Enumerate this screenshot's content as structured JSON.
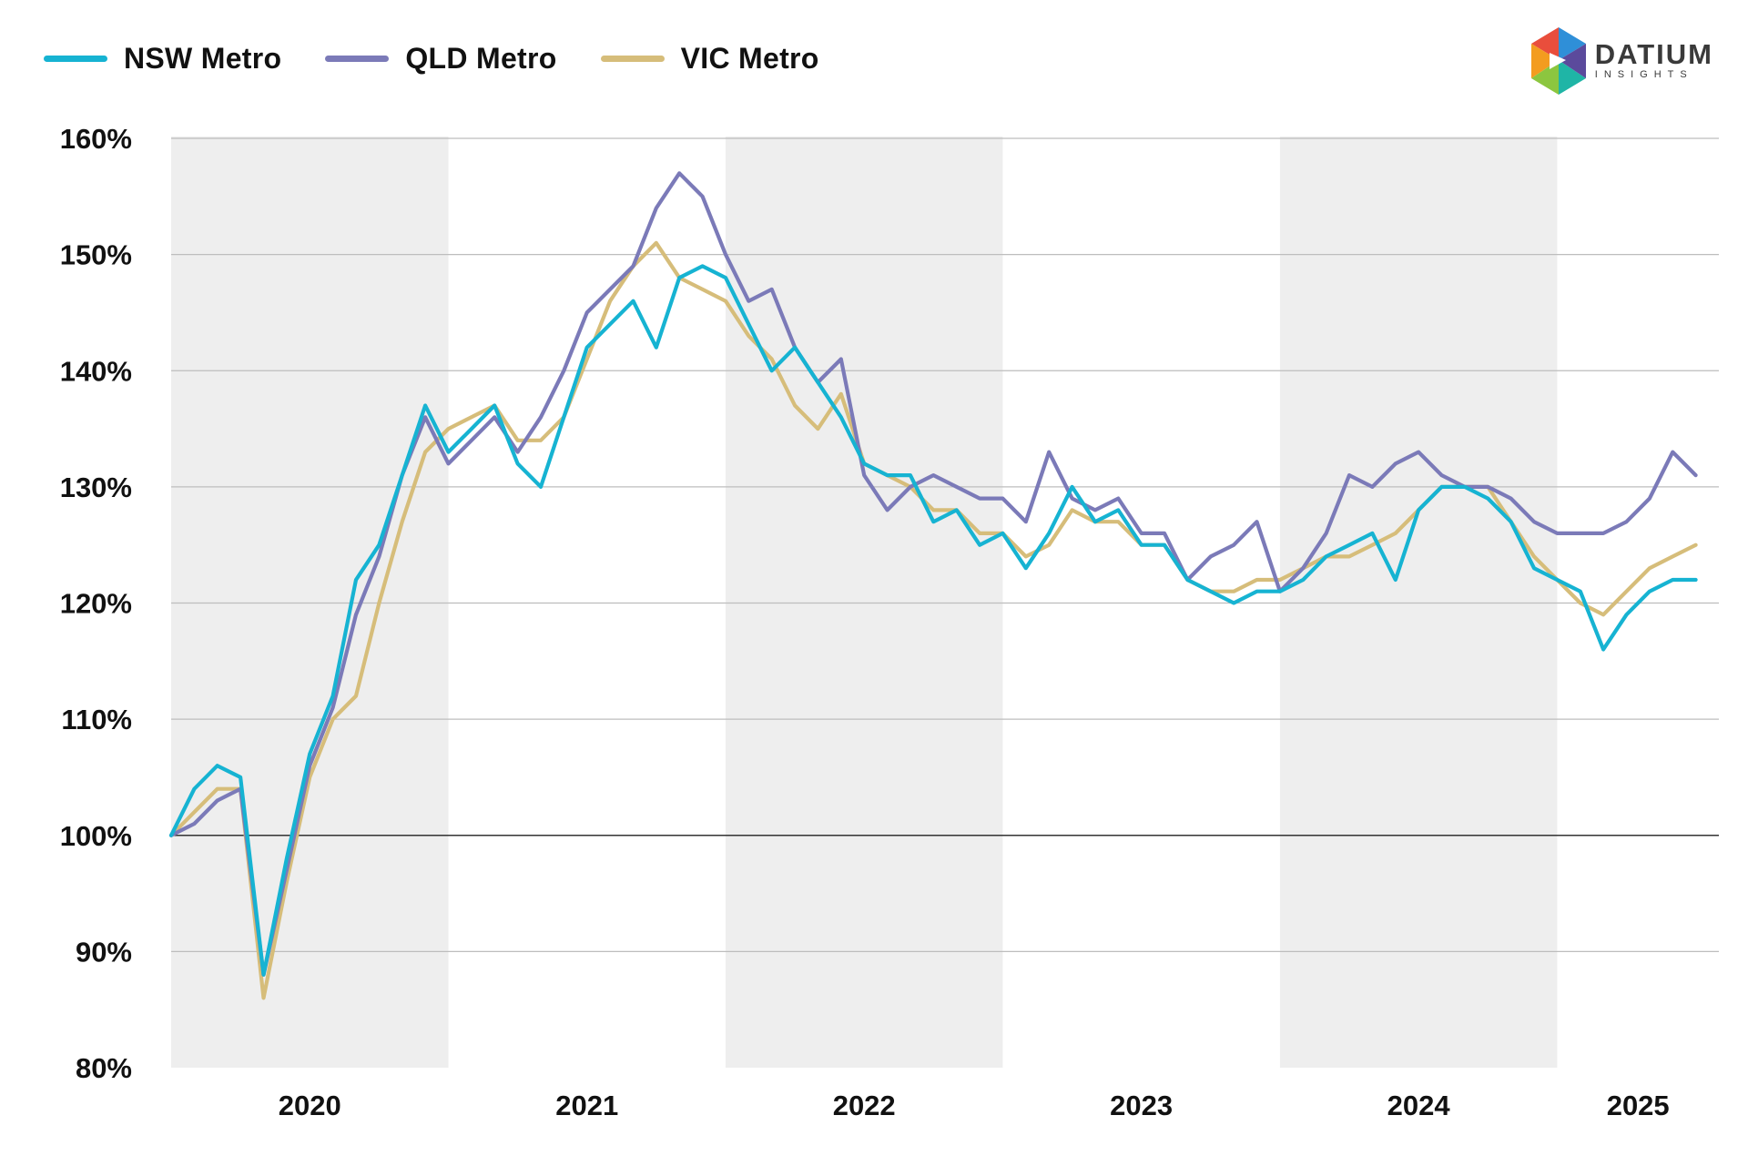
{
  "colors": {
    "nsw": "#16b3d2",
    "qld": "#7b7ab8",
    "vic": "#d6bd7a",
    "band": "#eeeeee",
    "grid": "#bdbdbd",
    "baseline": "#333333"
  },
  "logo": {
    "main": "DATIUM",
    "sub": "INSIGHTS"
  },
  "chart_data": {
    "type": "line",
    "title": "",
    "xlabel": "",
    "ylabel": "",
    "ylim": [
      80,
      160
    ],
    "y_ticks": [
      "160%",
      "150%",
      "140%",
      "130%",
      "120%",
      "110%",
      "100%",
      "90%",
      "80%"
    ],
    "x_ticks": [
      "2020",
      "2021",
      "2022",
      "2023",
      "2024",
      "2025"
    ],
    "x_range": [
      "2020-01",
      "2025-07"
    ],
    "shaded_years": [
      "2020",
      "2022",
      "2024"
    ],
    "legend_position": "top-left",
    "grid": true,
    "x": [
      "2020-01",
      "2020-02",
      "2020-03",
      "2020-04",
      "2020-05",
      "2020-06",
      "2020-07",
      "2020-08",
      "2020-09",
      "2020-10",
      "2020-11",
      "2020-12",
      "2021-01",
      "2021-02",
      "2021-03",
      "2021-04",
      "2021-05",
      "2021-06",
      "2021-07",
      "2021-08",
      "2021-09",
      "2021-10",
      "2021-11",
      "2021-12",
      "2022-01",
      "2022-02",
      "2022-03",
      "2022-04",
      "2022-05",
      "2022-06",
      "2022-07",
      "2022-08",
      "2022-09",
      "2022-10",
      "2022-11",
      "2022-12",
      "2023-01",
      "2023-02",
      "2023-03",
      "2023-04",
      "2023-05",
      "2023-06",
      "2023-07",
      "2023-08",
      "2023-09",
      "2023-10",
      "2023-11",
      "2023-12",
      "2024-01",
      "2024-02",
      "2024-03",
      "2024-04",
      "2024-05",
      "2024-06",
      "2024-07",
      "2024-08",
      "2024-09",
      "2024-10",
      "2024-11",
      "2024-12",
      "2025-01",
      "2025-02",
      "2025-03",
      "2025-04",
      "2025-05",
      "2025-06",
      "2025-07"
    ],
    "series": [
      {
        "name": "NSW Metro",
        "values": [
          100,
          104,
          106,
          105,
          88,
          98,
          107,
          112,
          122,
          125,
          131,
          137,
          133,
          135,
          137,
          132,
          130,
          136,
          142,
          144,
          146,
          142,
          148,
          149,
          148,
          144,
          140,
          142,
          139,
          136,
          132,
          131,
          131,
          127,
          128,
          125,
          126,
          123,
          126,
          130,
          127,
          128,
          125,
          125,
          122,
          121,
          120,
          121,
          121,
          122,
          124,
          125,
          126,
          122,
          128,
          130,
          130,
          129,
          127,
          123,
          122,
          121,
          116,
          119,
          121,
          122,
          122
        ]
      },
      {
        "name": "QLD Metro",
        "values": [
          100,
          101,
          103,
          104,
          88,
          97,
          106,
          111,
          119,
          124,
          131,
          136,
          132,
          134,
          136,
          133,
          136,
          140,
          145,
          147,
          149,
          154,
          157,
          155,
          150,
          146,
          147,
          142,
          139,
          141,
          131,
          128,
          130,
          131,
          130,
          129,
          129,
          127,
          133,
          129,
          128,
          129,
          126,
          126,
          122,
          124,
          125,
          127,
          121,
          123,
          126,
          131,
          130,
          132,
          133,
          131,
          130,
          130,
          129,
          127,
          126,
          126,
          126,
          127,
          129,
          133,
          131
        ]
      },
      {
        "name": "VIC Metro",
        "values": [
          100,
          102,
          104,
          104,
          86,
          96,
          105,
          110,
          112,
          120,
          127,
          133,
          135,
          136,
          137,
          134,
          134,
          136,
          141,
          146,
          149,
          151,
          148,
          147,
          146,
          143,
          141,
          137,
          135,
          138,
          132,
          131,
          130,
          128,
          128,
          126,
          126,
          124,
          125,
          128,
          127,
          127,
          125,
          125,
          122,
          121,
          121,
          122,
          122,
          123,
          124,
          124,
          125,
          126,
          128,
          130,
          130,
          130,
          127,
          124,
          122,
          120,
          119,
          121,
          123,
          124,
          125
        ]
      }
    ]
  }
}
